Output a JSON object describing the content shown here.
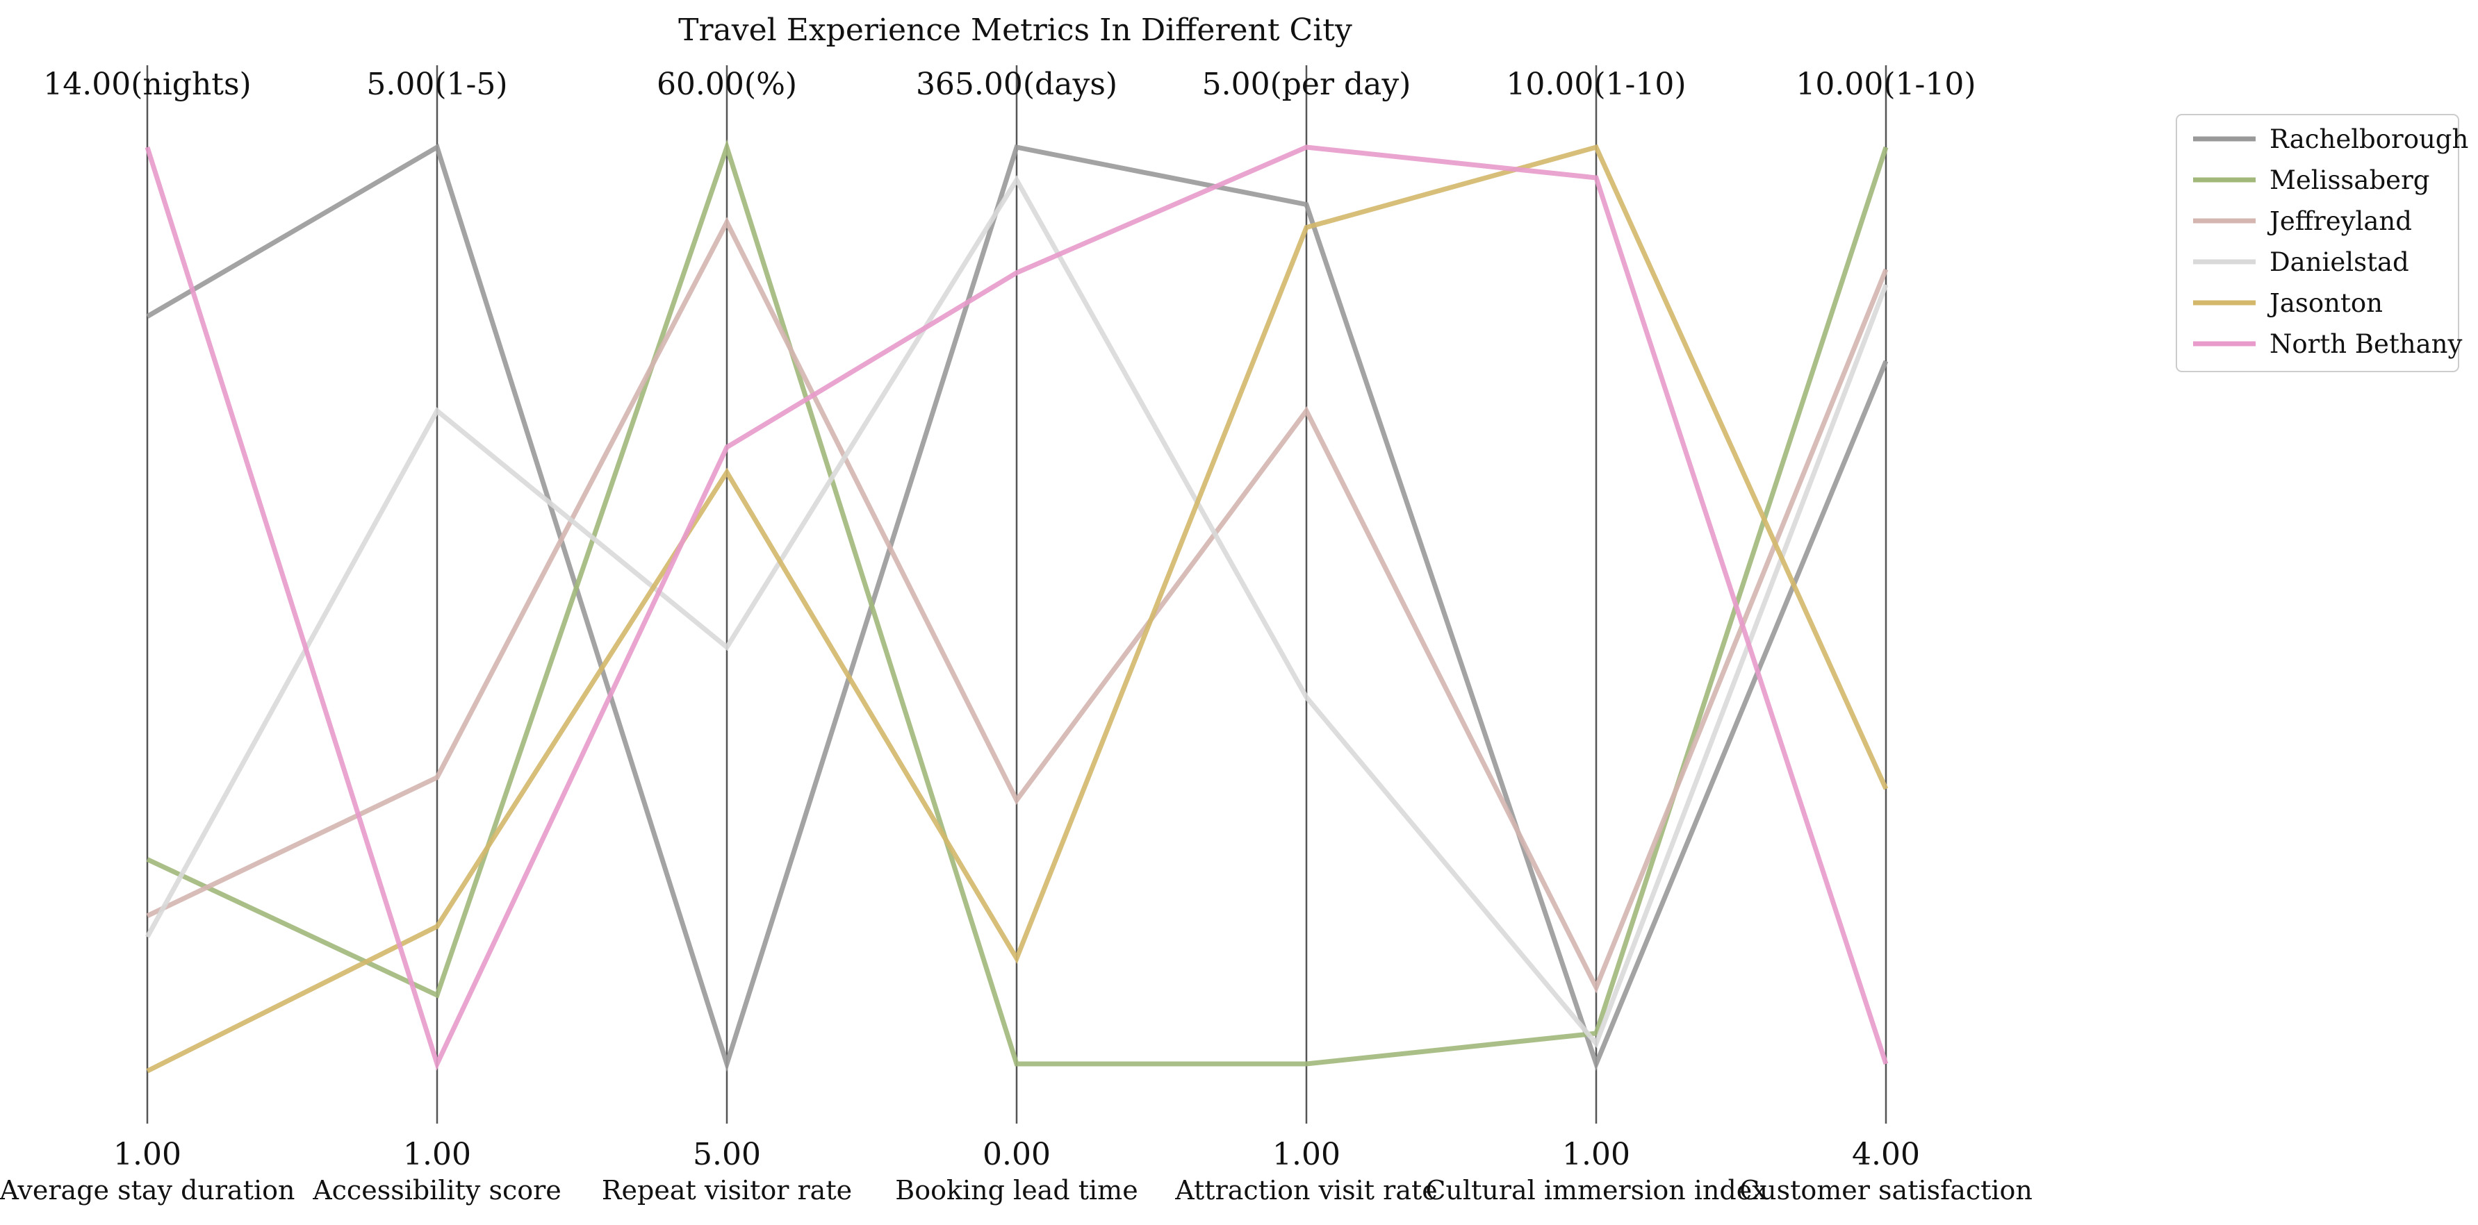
{
  "chart_data": {
    "type": "parallel-coordinates",
    "title": "Travel Experience Metrics In Different City",
    "axes": [
      {
        "label": "Average stay duration",
        "min_label": "1.00",
        "max_label": "14.00(nights)",
        "min": 1,
        "max": 14,
        "unit": "nights"
      },
      {
        "label": "Accessibility score",
        "min_label": "1.00",
        "max_label": "5.00(1-5)",
        "min": 1,
        "max": 5,
        "unit": "1-5"
      },
      {
        "label": "Repeat visitor rate",
        "min_label": "5.00",
        "max_label": "60.00(%)",
        "min": 5,
        "max": 60,
        "unit": "%"
      },
      {
        "label": "Booking lead time",
        "min_label": "0.00",
        "max_label": "365.00(days)",
        "min": 0,
        "max": 365,
        "unit": "days"
      },
      {
        "label": "Attraction visit rate",
        "min_label": "1.00",
        "max_label": "5.00(per day)",
        "min": 1,
        "max": 5,
        "unit": "per day"
      },
      {
        "label": "Cultural immersion index",
        "min_label": "1.00",
        "max_label": "10.00(1-10)",
        "min": 1,
        "max": 10,
        "unit": "1-10"
      },
      {
        "label": "Customer satisfaction",
        "min_label": "4.00",
        "max_label": "10.00(1-10)",
        "min": 4,
        "max": 10,
        "unit": "1-10"
      }
    ],
    "series": [
      {
        "name": "Rachelborough",
        "color": "#999999",
        "values": [
          11.6,
          5.0,
          5.0,
          365.0,
          4.75,
          1.0,
          8.6
        ]
      },
      {
        "name": "Melissaberg",
        "color": "#a1b87a",
        "values": [
          3.9,
          1.3,
          60.0,
          0.0,
          1.0,
          1.3,
          10.0
        ]
      },
      {
        "name": "Jeffreyland",
        "color": "#d4b5b0",
        "values": [
          3.1,
          2.25,
          55.5,
          105.0,
          3.85,
          1.75,
          9.2
        ]
      },
      {
        "name": "Danielstad",
        "color": "#d9d9d9",
        "values": [
          2.8,
          3.85,
          30.0,
          352.0,
          2.6,
          1.2,
          9.1
        ]
      },
      {
        "name": "Jasonton",
        "color": "#d3b86b",
        "values": [
          0.9,
          1.6,
          40.5,
          42.0,
          4.65,
          10.0,
          5.8
        ]
      },
      {
        "name": "North Bethany",
        "color": "#e89acb",
        "values": [
          14.0,
          1.0,
          42.0,
          315.0,
          5.0,
          9.7,
          4.0
        ]
      }
    ],
    "legend_position": "top-right",
    "grid": false
  }
}
